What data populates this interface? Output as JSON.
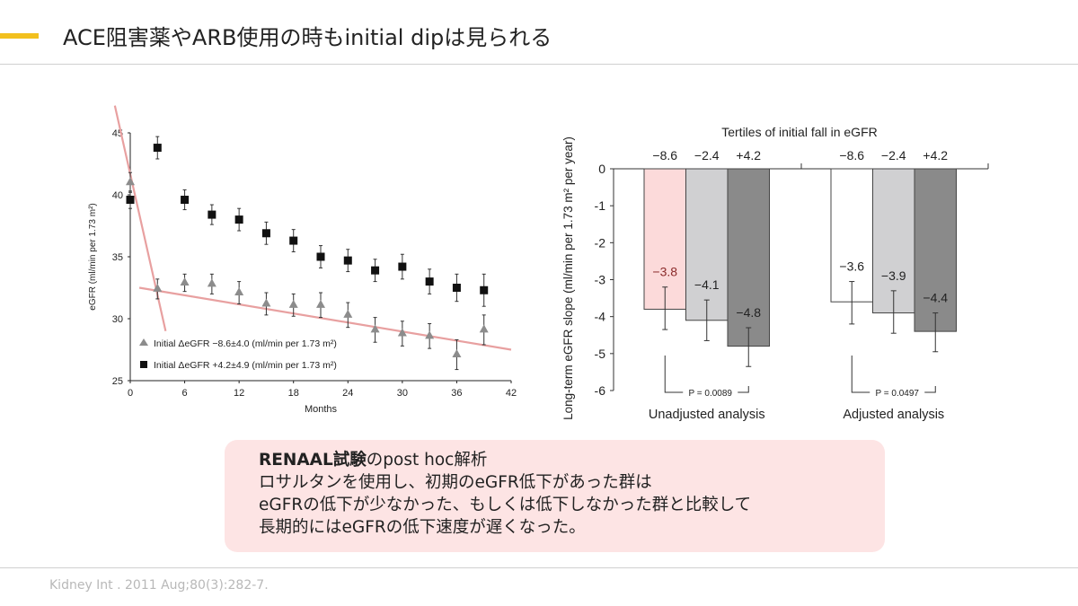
{
  "slide": {
    "title": "ACE阻害薬やARB使用の時もinitial dipは見られる",
    "accent_color": "#f2c01e",
    "callout": {
      "heading_bold": "RENAAL試験",
      "heading_rest": "のpost hoc解析",
      "lines": [
        "ロサルタンを使用し、初期のeGFR低下があった群は",
        "eGFRの低下が少なかった、もしくは低下しなかった群と比較して",
        "長期的にはeGFRの低下速度が遅くなった。"
      ],
      "background": "#fde4e4"
    },
    "citation": "Kidney Int . 2011 Aug;80(3):282-7."
  },
  "chart_data": [
    {
      "type": "scatter",
      "xlabel": "Months",
      "ylabel": "eGFR (ml/min per 1.73 m²)",
      "xlim": [
        0,
        42
      ],
      "ylim": [
        25,
        45
      ],
      "xticks": [
        0,
        6,
        12,
        18,
        24,
        30,
        36,
        42
      ],
      "yticks": [
        25,
        30,
        35,
        40,
        45
      ],
      "legend_position": "bottom-left",
      "x": [
        0,
        3,
        6,
        9,
        12,
        15,
        18,
        21,
        24,
        27,
        30,
        33,
        36,
        39
      ],
      "series": [
        {
          "name": "Initial ΔeGFR −8.6±4.0 (ml/min per 1.73 m²)",
          "marker": "triangle",
          "color": "#8c8c8c",
          "values": [
            41.0,
            32.4,
            32.9,
            32.8,
            32.1,
            31.2,
            31.1,
            31.1,
            30.3,
            29.1,
            28.8,
            28.6,
            27.1,
            29.1
          ],
          "errors": [
            0.8,
            0.8,
            0.7,
            0.8,
            0.9,
            0.9,
            0.9,
            1.0,
            1.0,
            1.0,
            1.0,
            1.0,
            1.2,
            1.2
          ]
        },
        {
          "name": "Initial ΔeGFR +4.2±4.9 (ml/min per 1.73 m²)",
          "marker": "square",
          "color": "#111111",
          "values": [
            39.6,
            43.8,
            39.6,
            38.4,
            38.0,
            36.9,
            36.3,
            35.0,
            34.7,
            33.9,
            34.2,
            33.0,
            32.5,
            32.3
          ],
          "errors": [
            0.7,
            0.9,
            0.8,
            0.8,
            0.9,
            0.9,
            0.9,
            0.9,
            0.9,
            0.9,
            1.0,
            1.0,
            1.1,
            1.3
          ]
        }
      ],
      "trend_lines": [
        {
          "color": "#e8a0a0",
          "points": [
            [
              -1.7,
              47.2
            ],
            [
              3.9,
              29.0
            ]
          ]
        },
        {
          "color": "#e8a0a0",
          "points": [
            [
              1.0,
              32.5
            ],
            [
              42.0,
              27.5
            ]
          ]
        }
      ]
    },
    {
      "type": "bar",
      "title": "Tertiles of initial fall in eGFR",
      "ylabel": "Long-term eGFR slope (ml/min per 1.73 m² per year)",
      "ylim": [
        -6,
        0
      ],
      "yticks": [
        0,
        -1,
        -2,
        -3,
        -4,
        -5,
        -6
      ],
      "groups": [
        {
          "label": "Unadjusted analysis",
          "p_value": "P = 0.0089",
          "categories": [
            "−8.6",
            "−2.4",
            "+4.2"
          ],
          "values": [
            -3.8,
            -4.1,
            -4.8
          ],
          "value_labels": [
            "−3.8",
            "−4.1",
            "−4.8"
          ],
          "error_low": [
            -4.35,
            -4.65,
            -5.35
          ],
          "error_high": [
            -3.2,
            -3.55,
            -4.3
          ],
          "colors": [
            "#fcdada",
            "#d0d0d2",
            "#8a8a8a"
          ]
        },
        {
          "label": "Adjusted analysis",
          "p_value": "P = 0.0497",
          "categories": [
            "−8.6",
            "−2.4",
            "+4.2"
          ],
          "values": [
            -3.6,
            -3.9,
            -4.4
          ],
          "value_labels": [
            "−3.6",
            "−3.9",
            "−4.4"
          ],
          "error_low": [
            -4.2,
            -4.45,
            -4.95
          ],
          "error_high": [
            -3.05,
            -3.3,
            -3.9
          ],
          "colors": [
            "#ffffff",
            "#d0d0d2",
            "#8a8a8a"
          ]
        }
      ]
    }
  ]
}
